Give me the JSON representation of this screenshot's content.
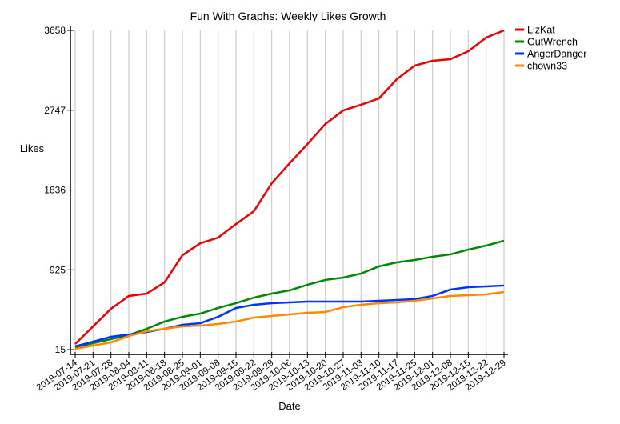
{
  "chart_data": {
    "type": "line",
    "title": "Fun With Graphs: Weekly Likes Growth",
    "xlabel": "Date",
    "ylabel": "Likes",
    "ylim": [
      15,
      3658
    ],
    "yticks": [
      15,
      925,
      1836,
      2747,
      3658
    ],
    "grid": "vertical",
    "legend": "top-right",
    "categories": [
      "2019-07-14",
      "2019-07-21",
      "2019-07-28",
      "2019-08-04",
      "2019-08-11",
      "2019-08-18",
      "2019-08-25",
      "2019-09-01",
      "2019-09-08",
      "2019-09-15",
      "2019-09-22",
      "2019-09-29",
      "2019-10-06",
      "2019-10-13",
      "2019-10-20",
      "2019-10-27",
      "2019-11-03",
      "2019-11-10",
      "2019-11-17",
      "2019-11-25",
      "2019-12-01",
      "2019-12-08",
      "2019-12-15",
      "2019-12-22",
      "2019-12-29"
    ],
    "series": [
      {
        "name": "LizKat",
        "color": "#ee0000",
        "values": [
          79,
          280,
          481,
          627,
          654,
          782,
          1092,
          1229,
          1293,
          1448,
          1594,
          1914,
          2142,
          2361,
          2590,
          2745,
          2809,
          2882,
          3101,
          3256,
          3311,
          3329,
          3420,
          3576,
          3658
        ]
      },
      {
        "name": "GutWrench",
        "color": "#008800",
        "values": [
          42,
          88,
          134,
          180,
          252,
          335,
          389,
          426,
          490,
          545,
          608,
          654,
          691,
          755,
          810,
          837,
          883,
          965,
          1010,
          1038,
          1074,
          1102,
          1156,
          1202,
          1257
        ]
      },
      {
        "name": "AngerDanger",
        "color": "#0033ff",
        "values": [
          52,
          106,
          161,
          188,
          216,
          252,
          298,
          316,
          389,
          490,
          526,
          545,
          554,
          563,
          563,
          563,
          563,
          572,
          581,
          591,
          627,
          700,
          727,
          736,
          746
        ]
      },
      {
        "name": "chown33",
        "color": "#ff8800",
        "values": [
          24,
          61,
          97,
          170,
          225,
          252,
          280,
          289,
          307,
          335,
          380,
          398,
          417,
          435,
          444,
          499,
          526,
          545,
          554,
          572,
          599,
          627,
          636,
          645,
          672
        ]
      }
    ]
  }
}
